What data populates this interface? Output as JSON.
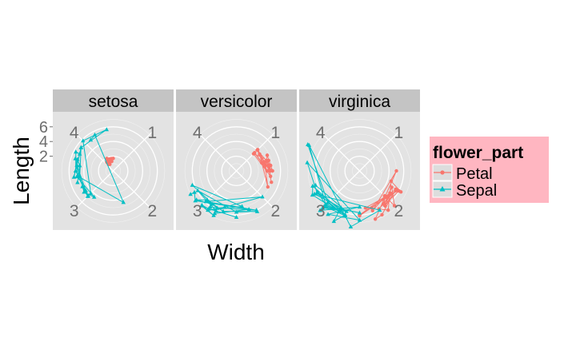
{
  "chart_data": {
    "type": "scatter",
    "coordinate_system": "polar",
    "xlabel": "Width",
    "ylabel": "Length",
    "y_ticks": [
      "2",
      "4",
      "6"
    ],
    "theta_labels": [
      "1",
      "2",
      "3",
      "4"
    ],
    "theta_range": [
      0.5,
      4.5
    ],
    "r_range": [
      0,
      7.5
    ],
    "legend": {
      "title": "flower_part",
      "position": "right",
      "background": "#FFB6C1",
      "entries": [
        {
          "label": "Petal",
          "color": "#F8766D",
          "shape": "circle"
        },
        {
          "label": "Sepal",
          "color": "#00BFC4",
          "shape": "triangle"
        }
      ]
    },
    "panels": [
      {
        "name": "setosa",
        "series": [
          {
            "name": "Petal",
            "x": [
              0.2,
              0.2,
              0.2,
              0.2,
              0.2,
              0.4,
              0.3,
              0.2,
              0.2,
              0.1,
              0.2,
              0.2,
              0.1,
              0.1,
              0.2,
              0.4,
              0.4,
              0.3,
              0.3,
              0.3,
              0.2,
              0.4,
              0.2,
              0.5,
              0.2
            ],
            "y": [
              1.4,
              1.4,
              1.3,
              1.5,
              1.4,
              1.7,
              1.4,
              1.5,
              1.4,
              1.5,
              1.5,
              1.6,
              1.4,
              1.1,
              1.2,
              1.5,
              1.3,
              1.4,
              1.7,
              1.5,
              1.7,
              1.5,
              1.0,
              1.7,
              1.9
            ]
          },
          {
            "name": "Sepal",
            "x": [
              3.5,
              3.0,
              3.2,
              3.1,
              3.6,
              3.9,
              3.4,
              3.4,
              2.9,
              3.1,
              3.7,
              3.4,
              3.0,
              3.0,
              4.0,
              4.4,
              3.9,
              3.5,
              3.8,
              3.8,
              3.4,
              3.7,
              3.6,
              3.3,
              3.4,
              2.3,
              4.2,
              4.1
            ],
            "y": [
              5.1,
              4.9,
              4.7,
              4.6,
              5.0,
              5.4,
              4.6,
              5.0,
              4.4,
              4.9,
              5.4,
              4.8,
              4.8,
              4.3,
              5.8,
              5.7,
              5.4,
              5.1,
              5.7,
              5.1,
              5.4,
              5.1,
              4.6,
              5.1,
              4.8,
              4.5,
              5.5,
              5.2
            ]
          }
        ]
      },
      {
        "name": "versicolor",
        "series": [
          {
            "name": "Petal",
            "x": [
              1.4,
              1.5,
              1.5,
              1.3,
              1.5,
              1.3,
              1.6,
              1.0,
              1.3,
              1.4,
              1.0,
              1.5,
              1.0,
              1.4,
              1.3,
              1.4,
              1.5,
              1.0,
              1.5,
              1.1,
              1.8,
              1.3,
              1.5,
              1.2,
              1.3,
              1.4,
              1.7
            ],
            "y": [
              4.7,
              4.5,
              4.9,
              4.0,
              4.6,
              4.5,
              4.7,
              3.3,
              4.6,
              3.9,
              3.5,
              4.2,
              4.0,
              4.7,
              3.6,
              4.4,
              4.5,
              4.1,
              4.5,
              3.9,
              4.8,
              4.0,
              4.9,
              4.7,
              4.3,
              4.4,
              5.0
            ]
          },
          {
            "name": "Sepal",
            "x": [
              3.2,
              3.2,
              3.1,
              2.3,
              2.8,
              2.8,
              3.3,
              2.4,
              2.9,
              2.7,
              2.0,
              3.0,
              2.2,
              2.9,
              2.9,
              3.1,
              3.0,
              2.7,
              2.2,
              2.5,
              3.2,
              2.8,
              2.5,
              2.8,
              2.9,
              3.0,
              2.8,
              3.0
            ],
            "y": [
              7.0,
              6.4,
              6.9,
              5.5,
              6.5,
              5.7,
              6.3,
              4.9,
              6.6,
              5.2,
              5.0,
              5.9,
              6.0,
              6.1,
              5.6,
              6.7,
              5.6,
              5.8,
              6.2,
              5.6,
              5.9,
              6.1,
              6.3,
              6.1,
              6.4,
              6.6,
              6.8,
              6.7
            ]
          }
        ]
      },
      {
        "name": "virginica",
        "series": [
          {
            "name": "Petal",
            "x": [
              2.5,
              1.9,
              2.1,
              1.8,
              2.2,
              2.1,
              1.7,
              1.8,
              1.8,
              2.5,
              2.0,
              1.9,
              2.1,
              2.0,
              2.4,
              2.3,
              1.8,
              2.2,
              2.3,
              1.5,
              2.3,
              2.0,
              2.0,
              1.8,
              2.1,
              1.8,
              2.0
            ],
            "y": [
              6.0,
              5.1,
              5.9,
              5.6,
              5.8,
              6.6,
              4.5,
              6.3,
              5.8,
              6.1,
              5.1,
              5.3,
              5.5,
              5.0,
              5.1,
              5.3,
              5.5,
              6.7,
              6.9,
              5.0,
              5.7,
              4.9,
              6.7,
              4.9,
              5.7,
              6.0,
              4.8
            ]
          },
          {
            "name": "Sepal",
            "x": [
              3.3,
              2.7,
              3.0,
              2.9,
              3.0,
              3.0,
              2.5,
              2.9,
              2.5,
              3.6,
              3.2,
              2.7,
              3.0,
              2.5,
              2.8,
              3.2,
              3.0,
              3.8,
              2.6,
              2.2,
              3.2,
              2.8,
              2.8,
              2.7,
              3.3,
              3.2,
              2.8,
              3.0,
              3.8
            ],
            "y": [
              6.3,
              5.8,
              7.1,
              6.3,
              6.5,
              7.6,
              4.9,
              7.3,
              6.7,
              7.2,
              6.5,
              6.4,
              6.8,
              5.7,
              5.8,
              6.4,
              6.5,
              7.7,
              7.7,
              6.0,
              6.9,
              5.6,
              7.7,
              6.3,
              6.7,
              7.2,
              6.2,
              6.1,
              7.9
            ]
          }
        ]
      }
    ]
  }
}
